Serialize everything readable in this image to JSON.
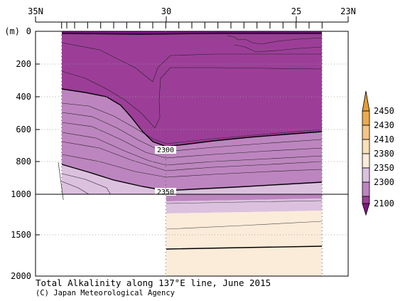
{
  "chart_data": {
    "type": "heatmap",
    "title": "Total Alkalinity along 137°E line, June 2015",
    "credit": "(C) Japan Meteorological Agency",
    "x_axis": {
      "direction": "latitude, decreasing left to right",
      "range": [
        35,
        23
      ],
      "tick_labels": [
        {
          "lat": 35,
          "label": "35N"
        },
        {
          "lat": 30,
          "label": "30"
        },
        {
          "lat": 25,
          "label": "25"
        },
        {
          "lat": 23,
          "label": "23N"
        }
      ]
    },
    "y_axis": {
      "unit_label": "(m)",
      "direction": "depth, increasing downward",
      "range": [
        0,
        2000
      ],
      "scale_break_at": 1000,
      "upper_panel_ticks": [
        0,
        200,
        400,
        600,
        800,
        1000
      ],
      "lower_panel_ticks": [
        1500,
        2000
      ]
    },
    "station_latitudes": [
      34.0,
      33.8,
      33.5,
      33.0,
      32.5,
      32.0,
      31.5,
      31.0,
      30.5,
      30.0,
      29.5,
      29.0,
      28.5,
      28.0,
      27.5,
      27.0,
      26.5,
      26.0,
      25.5,
      25.0,
      24.5,
      24.0
    ],
    "contour_labels": [
      {
        "text": "2300",
        "lat": 30.0,
        "depth": 720
      },
      {
        "text": "2350",
        "lat": 30.0,
        "depth": 975
      }
    ],
    "colorbar": {
      "levels": [
        "2100",
        "2300",
        "2350",
        "2380",
        "2410",
        "2430",
        "2450"
      ],
      "colors": [
        "#9c3e98",
        "#bd85bf",
        "#dcc1df",
        "#fbebd9",
        "#f9dfb7",
        "#f3c586",
        "#ebaa4e"
      ],
      "under_color": "#7d1785",
      "over_color": "#e79c38"
    }
  }
}
